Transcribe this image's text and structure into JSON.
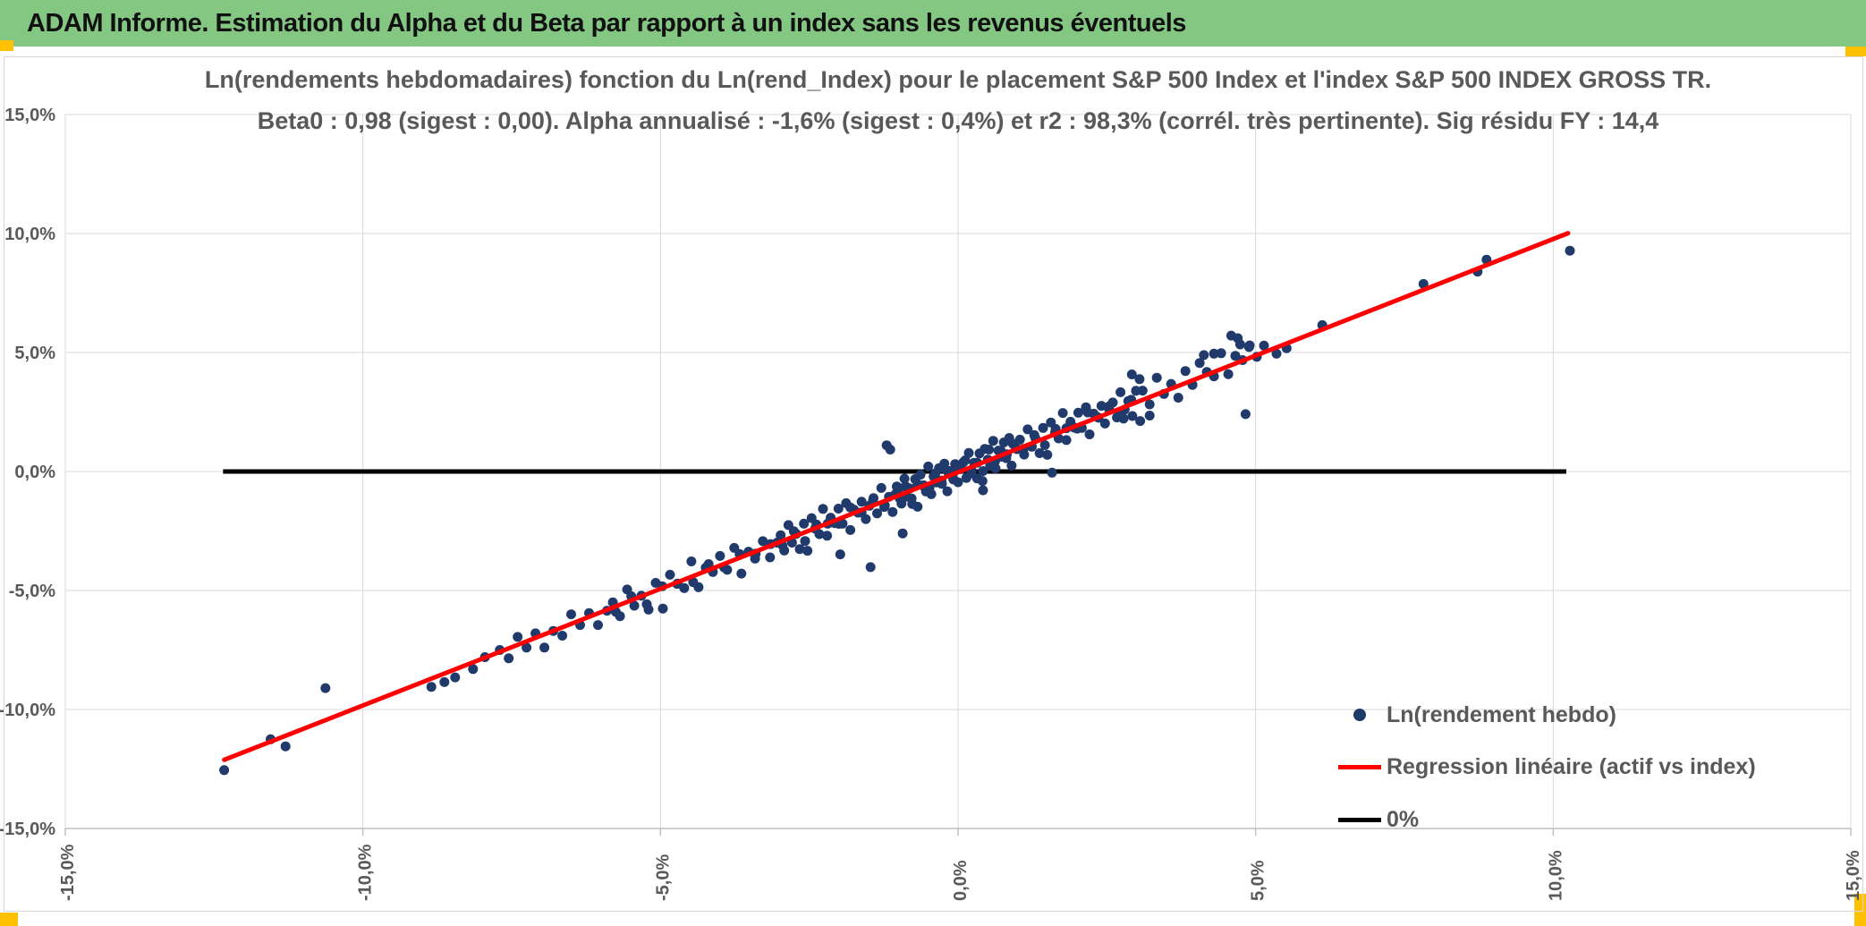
{
  "header": {
    "title": "ADAM Informe. Estimation du Alpha et du Beta par rapport à un index sans les revenus éventuels"
  },
  "colors": {
    "header_bg": "#84C783",
    "page_marker_yellow": "#FFC000",
    "scatter_point": "#203A6C",
    "regression_line": "#FF0000",
    "zero_line": "#000000",
    "gridline": "#D9D9D9",
    "axis_line": "#BFBFBF",
    "text_gray": "#595959"
  },
  "chart_data": {
    "type": "scatter",
    "title_line1": "Ln(rendements hebdomadaires) fonction du Ln(rend_Index) pour le placement S&P 500 Index et l'index S&P 500 INDEX GROSS TR.",
    "title_line2": "Beta0 : 0,98 (sigest : 0,00). Alpha annualisé : -1,6% (sigest : 0,4%) et r2 : 98,3% (corrél. très pertinente). Sig résidu FY : 14,4",
    "xlabel": "",
    "ylabel": "",
    "xlim": [
      -15,
      15
    ],
    "ylim": [
      -15,
      15
    ],
    "grid": true,
    "legend_position": "inside-bottom-right",
    "x_ticks": [
      {
        "label": "-15,0%",
        "value": -15
      },
      {
        "label": "-10,0%",
        "value": -10
      },
      {
        "label": "-5,0%",
        "value": -5
      },
      {
        "label": "0,0%",
        "value": 0
      },
      {
        "label": "5,0%",
        "value": 5
      },
      {
        "label": "10,0%",
        "value": 10
      },
      {
        "label": "15,0%",
        "value": 15
      }
    ],
    "y_ticks": [
      {
        "label": "15,0%",
        "value": 15
      },
      {
        "label": "10,0%",
        "value": 10
      },
      {
        "label": "5,0%",
        "value": 5
      },
      {
        "label": "0,0%",
        "value": 0
      },
      {
        "label": "-5,0%",
        "value": -5
      },
      {
        "label": "-10,0%",
        "value": -10
      },
      {
        "label": "-15,0%",
        "value": -15
      }
    ],
    "stats": {
      "beta0": "0,98",
      "beta0_sigest": "0,00",
      "alpha_annualise": "-1,6%",
      "alpha_sigest": "0,4%",
      "r2": "98,3%",
      "correlation_note": "corrél. très pertinente",
      "sig_residu_FY": "14,4"
    },
    "series": [
      {
        "name": "Ln(rendement hebdo)",
        "type": "scatter",
        "color": "#203A6C",
        "marker": "dot",
        "points": [
          [
            -12.33,
            -12.55
          ],
          [
            -11.55,
            -11.25
          ],
          [
            -11.3,
            -11.55
          ],
          [
            -10.63,
            -9.1
          ],
          [
            -8.85,
            -9.05
          ],
          [
            -8.63,
            -8.85
          ],
          [
            -8.45,
            -8.65
          ],
          [
            -8.15,
            -8.3
          ],
          [
            -7.95,
            -7.8
          ],
          [
            -7.7,
            -7.5
          ],
          [
            -7.55,
            -7.85
          ],
          [
            -7.4,
            -6.95
          ],
          [
            -7.25,
            -7.4
          ],
          [
            -7.1,
            -6.8
          ],
          [
            -6.95,
            -7.4
          ],
          [
            -6.8,
            -6.7
          ],
          [
            -6.65,
            -6.9
          ],
          [
            -6.5,
            -6.0
          ],
          [
            -6.35,
            -6.45
          ],
          [
            -6.2,
            -5.95
          ],
          [
            -6.05,
            -6.45
          ],
          [
            -5.9,
            -5.85
          ],
          [
            -5.8,
            -5.5
          ],
          [
            -5.68,
            -6.08
          ],
          [
            -5.56,
            -4.96
          ],
          [
            -5.44,
            -5.64
          ],
          [
            -5.32,
            -5.22
          ],
          [
            -5.2,
            -5.8
          ],
          [
            -5.08,
            -4.68
          ],
          [
            -4.96,
            -5.76
          ],
          [
            -4.84,
            -4.34
          ],
          [
            -4.72,
            -4.72
          ],
          [
            -4.6,
            -4.9
          ],
          [
            -4.48,
            -3.78
          ],
          [
            -4.36,
            -4.86
          ],
          [
            -4.24,
            -4.04
          ],
          [
            -4.12,
            -4.22
          ],
          [
            -4.0,
            -3.55
          ],
          [
            -3.88,
            -4.13
          ],
          [
            -3.76,
            -3.21
          ],
          [
            -3.64,
            -4.29
          ],
          [
            -3.52,
            -3.37
          ],
          [
            -3.4,
            -3.45
          ],
          [
            -3.28,
            -2.93
          ],
          [
            -3.16,
            -3.61
          ],
          [
            -3.04,
            -2.99
          ],
          [
            -5.75,
            -5.9
          ],
          [
            -5.49,
            -5.24
          ],
          [
            -5.23,
            -5.58
          ],
          [
            -4.97,
            -4.82
          ],
          [
            -4.71,
            -4.71
          ],
          [
            -4.45,
            -4.65
          ],
          [
            -4.19,
            -3.89
          ],
          [
            -3.93,
            -4.03
          ],
          [
            -3.67,
            -3.47
          ],
          [
            -3.41,
            -3.66
          ],
          [
            -3.15,
            -3.05
          ],
          [
            -2.98,
            -2.68
          ],
          [
            -2.92,
            -3.32
          ],
          [
            -2.85,
            -2.25
          ],
          [
            -2.79,
            -2.99
          ],
          [
            -2.72,
            -2.62
          ],
          [
            -2.66,
            -3.26
          ],
          [
            -2.59,
            -2.19
          ],
          [
            -2.53,
            -3.33
          ],
          [
            -2.46,
            -1.96
          ],
          [
            -2.4,
            -2.4
          ],
          [
            -2.33,
            -2.63
          ],
          [
            -2.27,
            -1.57
          ],
          [
            -2.2,
            -2.7
          ],
          [
            -2.14,
            -1.94
          ],
          [
            -2.07,
            -2.17
          ],
          [
            -2.01,
            -1.56
          ],
          [
            -1.94,
            -2.19
          ],
          [
            -1.88,
            -1.33
          ],
          [
            -1.81,
            -2.46
          ],
          [
            -1.75,
            -1.6
          ],
          [
            -1.68,
            -1.73
          ],
          [
            -1.62,
            -1.27
          ],
          [
            -1.55,
            -2.0
          ],
          [
            -1.49,
            -1.44
          ],
          [
            -1.42,
            -1.12
          ],
          [
            -1.36,
            -1.76
          ],
          [
            -1.29,
            -0.69
          ],
          [
            -1.23,
            -1.43
          ],
          [
            -1.16,
            -1.06
          ],
          [
            -1.1,
            -1.7
          ],
          [
            -1.03,
            -0.63
          ],
          [
            -2.95,
            -3.1
          ],
          [
            -2.76,
            -2.51
          ],
          [
            -2.57,
            -2.92
          ],
          [
            -2.38,
            -2.23
          ],
          [
            -2.19,
            -2.19
          ],
          [
            -2.0,
            -2.2
          ],
          [
            -1.81,
            -1.51
          ],
          [
            -1.62,
            -1.72
          ],
          [
            -1.43,
            -1.23
          ],
          [
            -1.24,
            -1.49
          ],
          [
            -1.05,
            -0.95
          ],
          [
            -0.99,
            -0.69
          ],
          [
            -0.95,
            -1.35
          ],
          [
            -0.9,
            -0.3
          ],
          [
            -0.86,
            -1.06
          ],
          [
            -0.81,
            -0.71
          ],
          [
            -0.77,
            -1.37
          ],
          [
            -0.72,
            -0.32
          ],
          [
            -0.68,
            -1.48
          ],
          [
            -0.63,
            -0.13
          ],
          [
            -0.59,
            -0.59
          ],
          [
            -0.54,
            -0.84
          ],
          [
            -0.5,
            0.21
          ],
          [
            -0.45,
            -0.95
          ],
          [
            -0.41,
            -0.21
          ],
          [
            -0.36,
            -0.46
          ],
          [
            -0.32,
            0.14
          ],
          [
            -0.27,
            -0.52
          ],
          [
            -0.23,
            0.33
          ],
          [
            -0.18,
            -0.83
          ],
          [
            -0.14,
            0.02
          ],
          [
            -0.09,
            -0.14
          ],
          [
            -0.05,
            0.31
          ],
          [
            0.0,
            -0.45
          ],
          [
            0.05,
            0.1
          ],
          [
            0.09,
            0.39
          ],
          [
            0.14,
            -0.27
          ],
          [
            0.18,
            0.78
          ],
          [
            0.23,
            0.03
          ],
          [
            0.27,
            0.37
          ],
          [
            0.32,
            -0.29
          ],
          [
            0.36,
            0.76
          ],
          [
            0.41,
            -0.4
          ],
          [
            0.45,
            0.95
          ],
          [
            0.5,
            0.5
          ],
          [
            0.54,
            0.24
          ],
          [
            0.59,
            1.29
          ],
          [
            0.63,
            0.13
          ],
          [
            0.68,
            0.88
          ],
          [
            0.72,
            0.62
          ],
          [
            0.77,
            1.22
          ],
          [
            0.81,
            0.56
          ],
          [
            0.86,
            1.41
          ],
          [
            0.9,
            0.25
          ],
          [
            0.95,
            1.1
          ],
          [
            0.99,
            0.94
          ],
          [
            -0.98,
            -1.13
          ],
          [
            -0.88,
            -0.63
          ],
          [
            -0.78,
            -1.13
          ],
          [
            -0.68,
            -0.53
          ],
          [
            -0.58,
            -0.58
          ],
          [
            -0.48,
            -0.68
          ],
          [
            -0.38,
            -0.08
          ],
          [
            -0.28,
            -0.38
          ],
          [
            -0.18,
            0.02
          ],
          [
            -0.08,
            -0.33
          ],
          [
            0.02,
            0.12
          ],
          [
            0.12,
            0.47
          ],
          [
            0.22,
            -0.08
          ],
          [
            0.32,
            0.37
          ],
          [
            0.42,
            0.02
          ],
          [
            0.52,
            0.92
          ],
          [
            0.62,
            0.42
          ],
          [
            0.72,
            0.87
          ],
          [
            0.82,
            0.72
          ],
          [
            0.92,
            1.17
          ],
          [
            1.04,
            1.34
          ],
          [
            1.11,
            0.71
          ],
          [
            1.17,
            1.77
          ],
          [
            1.24,
            1.04
          ],
          [
            1.3,
            1.4
          ],
          [
            1.37,
            0.77
          ],
          [
            1.43,
            1.83
          ],
          [
            1.5,
            0.7
          ],
          [
            1.56,
            2.06
          ],
          [
            1.63,
            1.63
          ],
          [
            1.69,
            1.39
          ],
          [
            1.76,
            2.46
          ],
          [
            1.82,
            1.32
          ],
          [
            1.89,
            2.09
          ],
          [
            1.95,
            1.85
          ],
          [
            2.02,
            2.47
          ],
          [
            2.08,
            1.83
          ],
          [
            2.15,
            2.7
          ],
          [
            2.21,
            1.56
          ],
          [
            2.28,
            2.43
          ],
          [
            2.34,
            2.29
          ],
          [
            2.41,
            2.76
          ],
          [
            2.47,
            2.02
          ],
          [
            2.54,
            2.59
          ],
          [
            2.6,
            2.9
          ],
          [
            2.67,
            2.27
          ],
          [
            2.73,
            3.33
          ],
          [
            2.8,
            2.6
          ],
          [
            2.86,
            2.96
          ],
          [
            2.93,
            2.33
          ],
          [
            2.99,
            3.39
          ],
          [
            1.1,
            0.95
          ],
          [
            1.28,
            1.53
          ],
          [
            1.46,
            1.11
          ],
          [
            1.64,
            1.79
          ],
          [
            1.82,
            1.82
          ],
          [
            2.0,
            1.8
          ],
          [
            2.18,
            2.48
          ],
          [
            2.36,
            2.26
          ],
          [
            2.54,
            2.74
          ],
          [
            2.72,
            2.47
          ],
          [
            2.91,
            3.01
          ],
          [
            3.1,
            3.4
          ],
          [
            3.22,
            2.82
          ],
          [
            3.34,
            3.94
          ],
          [
            3.46,
            3.26
          ],
          [
            3.58,
            3.68
          ],
          [
            3.7,
            3.1
          ],
          [
            3.82,
            4.22
          ],
          [
            3.94,
            3.64
          ],
          [
            4.06,
            4.56
          ],
          [
            4.18,
            4.18
          ],
          [
            4.3,
            4.0
          ],
          [
            4.42,
            4.97
          ],
          [
            4.54,
            4.09
          ],
          [
            4.66,
            4.86
          ],
          [
            4.78,
            4.68
          ],
          [
            4.9,
            5.3
          ],
          [
            5.02,
            4.82
          ],
          [
            5.14,
            5.29
          ],
          [
            5.35,
            4.95
          ],
          [
            5.52,
            5.18
          ],
          [
            6.12,
            6.15
          ],
          [
            7.82,
            7.88
          ],
          [
            8.73,
            8.4
          ],
          [
            8.88,
            8.9
          ],
          [
            10.28,
            9.28
          ],
          [
            -1.98,
            -3.48
          ],
          [
            -1.47,
            -4.02
          ],
          [
            -0.93,
            -2.6
          ],
          [
            -1.2,
            1.1
          ],
          [
            -1.14,
            0.92
          ],
          [
            0.42,
            -0.79
          ],
          [
            1.58,
            -0.05
          ],
          [
            2.92,
            4.08
          ],
          [
            3.05,
            3.88
          ],
          [
            2.78,
            2.22
          ],
          [
            3.06,
            2.12
          ],
          [
            3.22,
            2.35
          ],
          [
            4.59,
            5.71
          ],
          [
            4.83,
            2.41
          ],
          [
            4.13,
            4.89
          ],
          [
            4.74,
            5.34
          ],
          [
            4.89,
            5.23
          ],
          [
            4.7,
            5.6
          ],
          [
            4.3,
            4.95
          ]
        ]
      },
      {
        "name": "Regression linéaire (actif vs index)",
        "type": "line",
        "color": "#FF0000",
        "beta": 0.98,
        "alpha_weekly_pct": -0.031,
        "x_start": -12.33,
        "x_end": 10.25
      },
      {
        "name": "0%",
        "type": "line",
        "color": "#000000",
        "y": 0,
        "x_start": -12.35,
        "x_end": 10.22
      }
    ]
  }
}
